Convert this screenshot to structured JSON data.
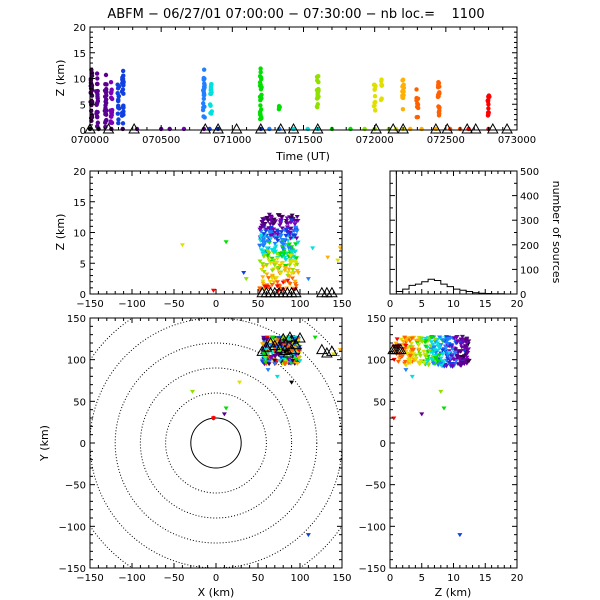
{
  "title": "ABFM − 06/27/01 07:00:00 − 07:30:00 − nb loc.=    1100",
  "colors": {
    "background": "#ffffff",
    "axes": "#000000",
    "palette": [
      "#000000",
      "#3a0050",
      "#5a0090",
      "#7a00b8",
      "#1040e0",
      "#2080ff",
      "#00e0e0",
      "#00e000",
      "#90e000",
      "#e0e000",
      "#ffb000",
      "#ff6000",
      "#ff0000"
    ]
  },
  "chart_data": [
    {
      "type": "scatter",
      "name": "time-height",
      "xlabel": "Time (UT)",
      "ylabel": "Z (km)",
      "xlim": [
        70000,
        73000
      ],
      "ylim": [
        0,
        20
      ],
      "x_ticks": [
        "070000",
        "070500",
        "071000",
        "071500",
        "072000",
        "072500",
        "073000"
      ],
      "y_ticks": [
        "0",
        "5",
        "10",
        "15",
        "20"
      ],
      "flash_groups": [
        {
          "t": 70010,
          "zmin": 0.5,
          "zmax": 12,
          "n": 30
        },
        {
          "t": 70050,
          "zmin": 0.5,
          "zmax": 11,
          "n": 22
        },
        {
          "t": 70110,
          "zmin": 0.5,
          "zmax": 11,
          "n": 26
        },
        {
          "t": 70150,
          "zmin": 0.5,
          "zmax": 10,
          "n": 16
        },
        {
          "t": 70200,
          "zmin": 1,
          "zmax": 9,
          "n": 16
        },
        {
          "t": 70230,
          "zmin": 1,
          "zmax": 12.5,
          "n": 22
        },
        {
          "t": 70800,
          "zmin": 2,
          "zmax": 12,
          "n": 22
        },
        {
          "t": 70850,
          "zmin": 3,
          "zmax": 9,
          "n": 14
        },
        {
          "t": 71200,
          "zmin": 2,
          "zmax": 12,
          "n": 24
        },
        {
          "t": 71330,
          "zmin": 4,
          "zmax": 6,
          "n": 4
        },
        {
          "t": 71600,
          "zmin": 4,
          "zmax": 11,
          "n": 18
        },
        {
          "t": 72000,
          "zmin": 3,
          "zmax": 9,
          "n": 12
        },
        {
          "t": 72050,
          "zmin": 5,
          "zmax": 10,
          "n": 8
        },
        {
          "t": 72200,
          "zmin": 4,
          "zmax": 10,
          "n": 14
        },
        {
          "t": 72300,
          "zmin": 2,
          "zmax": 9,
          "n": 10
        },
        {
          "t": 72450,
          "zmin": 2,
          "zmax": 10,
          "n": 18
        },
        {
          "t": 72800,
          "zmin": 2,
          "zmax": 7,
          "n": 12
        }
      ],
      "ground_dots": [
        70000,
        70060,
        70150,
        70230,
        70330,
        70500,
        70560,
        70660,
        70800,
        70840,
        70900,
        71200,
        71260,
        71330,
        71430,
        71530,
        71600,
        71700,
        71830,
        71930,
        72000,
        72100,
        72150,
        72200,
        72250,
        72330,
        72430,
        72530,
        72600,
        72660,
        72800
      ],
      "triangles": [
        70000,
        70130,
        70310,
        70810,
        70900,
        71030,
        71200,
        71340,
        71430,
        71600,
        72010,
        72130,
        72200,
        72430,
        72510,
        72650,
        72710,
        72830,
        72930
      ]
    },
    {
      "type": "scatter",
      "name": "x-z projection",
      "ylabel": "Z (km)",
      "xlim": [
        -150,
        150
      ],
      "ylim": [
        0,
        20
      ],
      "x_ticks": [
        "−150",
        "−100",
        "−50",
        "0",
        "50",
        "100",
        "150"
      ],
      "y_ticks": [
        "0",
        "5",
        "10",
        "15",
        "20"
      ],
      "cluster": {
        "x": [
          52,
          98
        ],
        "z": [
          0.5,
          13
        ]
      },
      "outliers": [
        {
          "x": -40,
          "z": 8,
          "c": 9
        },
        {
          "x": 12,
          "z": 8.5,
          "c": 7
        },
        {
          "x": -3,
          "z": 0.6,
          "c": 12
        },
        {
          "x": 33,
          "z": 3.5,
          "c": 4
        },
        {
          "x": 36,
          "z": 2.5,
          "c": 8
        },
        {
          "x": 133,
          "z": 6,
          "c": 10
        },
        {
          "x": 148,
          "z": 7.5,
          "c": 10
        },
        {
          "x": 145,
          "z": 5.5,
          "c": 9
        },
        {
          "x": 115,
          "z": 7.5,
          "c": 6
        },
        {
          "x": 110,
          "z": 2.5,
          "c": 5
        }
      ],
      "triangles": [
        55,
        60,
        65,
        70,
        75,
        80,
        85,
        90,
        95,
        126,
        132,
        138
      ]
    },
    {
      "type": "bar",
      "name": "altitude histogram",
      "ylabel": "number of sources",
      "xlim": [
        0,
        20
      ],
      "ylim": [
        0,
        500
      ],
      "x_ticks": [
        "0",
        "5",
        "10",
        "15",
        "20"
      ],
      "y_ticks": [
        "0",
        "100",
        "200",
        "300",
        "400",
        "500"
      ],
      "bins": [
        0,
        1,
        2,
        3,
        4,
        5,
        6,
        7,
        8,
        9,
        10,
        11,
        12,
        13,
        14,
        15,
        16,
        17,
        18,
        19
      ],
      "values": [
        500,
        10,
        20,
        35,
        40,
        50,
        60,
        55,
        40,
        30,
        20,
        15,
        10,
        5,
        3,
        2,
        1,
        1,
        0,
        0
      ]
    },
    {
      "type": "scatter",
      "name": "plan view",
      "xlabel": "X (km)",
      "ylabel": "Y (km)",
      "xlim": [
        -150,
        150
      ],
      "ylim": [
        -150,
        150
      ],
      "x_ticks": [
        "−150",
        "−100",
        "−50",
        "0",
        "50",
        "100",
        "150"
      ],
      "y_ticks": [
        "−150",
        "−100",
        "−50",
        "0",
        "50",
        "100",
        "150"
      ],
      "range_rings": [
        30,
        60,
        90,
        120,
        150,
        180
      ],
      "cluster": {
        "x": [
          55,
          100
        ],
        "y": [
          95,
          128
        ]
      },
      "outliers": [
        {
          "x": -28,
          "y": 62,
          "c": 8
        },
        {
          "x": 12,
          "y": 42,
          "c": 7
        },
        {
          "x": -3,
          "y": 30,
          "c": 12
        },
        {
          "x": 10,
          "y": 35,
          "c": 2
        },
        {
          "x": 28,
          "y": 73,
          "c": 9
        },
        {
          "x": 62,
          "y": 88,
          "c": 5
        },
        {
          "x": 73,
          "y": 80,
          "c": 6
        },
        {
          "x": 90,
          "y": 73,
          "c": 0
        },
        {
          "x": 110,
          "y": -110,
          "c": 4
        },
        {
          "x": 118,
          "y": 127,
          "c": 7
        },
        {
          "x": 148,
          "y": 112,
          "c": 10
        },
        {
          "x": 140,
          "y": 107,
          "c": 9
        }
      ],
      "triangles": [
        [
          55,
          110
        ],
        [
          60,
          115
        ],
        [
          65,
          120
        ],
        [
          70,
          117
        ],
        [
          76,
          113
        ],
        [
          82,
          111
        ],
        [
          86,
          108
        ],
        [
          90,
          112
        ],
        [
          95,
          118
        ],
        [
          100,
          126
        ],
        [
          88,
          127
        ],
        [
          126,
          112
        ],
        [
          132,
          108
        ],
        [
          138,
          110
        ],
        [
          80,
          125
        ]
      ]
    },
    {
      "type": "scatter",
      "name": "z-y projection",
      "xlabel": "Z (km)",
      "xlim": [
        0,
        20
      ],
      "ylim": [
        -150,
        150
      ],
      "x_ticks": [
        "0",
        "5",
        "10",
        "15",
        "20"
      ],
      "y_ticks": [
        "−150",
        "−100",
        "−50",
        "0",
        "50",
        "100",
        "150"
      ],
      "cluster": {
        "z": [
          0.5,
          12.5
        ],
        "y": [
          92,
          128
        ]
      },
      "outliers": [
        {
          "z": 8,
          "y": 62,
          "c": 8
        },
        {
          "z": 8.5,
          "y": 42,
          "c": 7
        },
        {
          "z": 0.6,
          "y": 30,
          "c": 12
        },
        {
          "z": 5,
          "y": 35,
          "c": 2
        },
        {
          "z": 3.5,
          "y": 80,
          "c": 6
        },
        {
          "z": 2.5,
          "y": 88,
          "c": 5
        },
        {
          "z": 6.5,
          "y": 127,
          "c": 7
        },
        {
          "z": 11,
          "y": -110,
          "c": 4
        },
        {
          "z": 3,
          "y": 100,
          "c": 9
        }
      ],
      "triangles": [
        0.5,
        0.8,
        1.1,
        1.4,
        1.7
      ]
    }
  ]
}
